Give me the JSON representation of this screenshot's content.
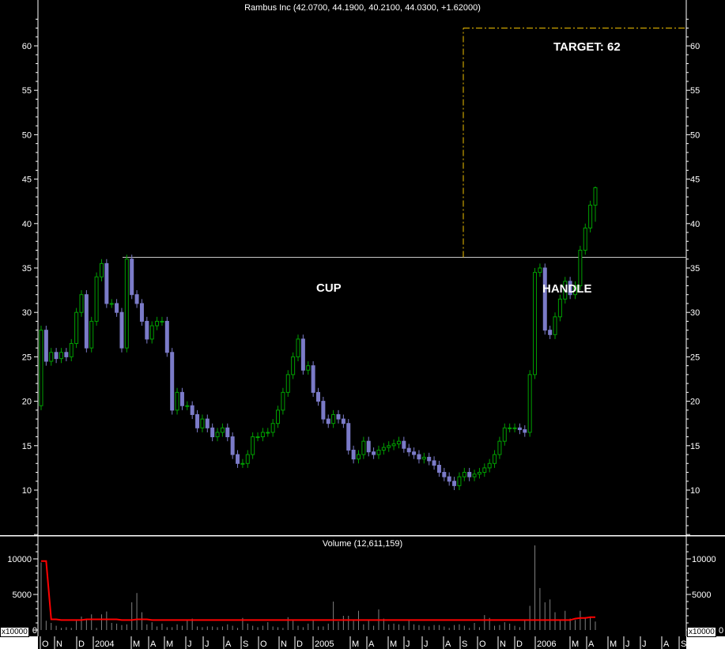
{
  "chart_data": [
    {
      "type": "candlestick",
      "title": "Rambus Inc (42.0700, 44.1900, 40.2100, 44.0300, +1.62000)",
      "last_bar": {
        "open": 42.07,
        "high": 44.19,
        "low": 40.21,
        "close": 44.03,
        "change": 1.62
      },
      "first_open": 19.5,
      "close": [
        28,
        24.5,
        25.5,
        24.8,
        25.5,
        25,
        26.5,
        30,
        32,
        26,
        29,
        34,
        35.5,
        31,
        31,
        30,
        26,
        36,
        32,
        31,
        29,
        27,
        28.5,
        29,
        29,
        25.5,
        19,
        21,
        19.5,
        19.5,
        18.5,
        17,
        18,
        17,
        16,
        16.5,
        17,
        16,
        14,
        13,
        13,
        14,
        16,
        16,
        16.5,
        16.5,
        17.5,
        19,
        21,
        23,
        25,
        27,
        23.5,
        24,
        21,
        20,
        18,
        17.5,
        18.5,
        18,
        17.5,
        14.5,
        13.5,
        14,
        15.5,
        14.3,
        14,
        14.5,
        14.8,
        15,
        15.2,
        15.5,
        14.7,
        14.3,
        14,
        13.5,
        13.7,
        13.3,
        12.8,
        12,
        11.5,
        11,
        10.5,
        11.5,
        12,
        11.5,
        11.8,
        12,
        12.5,
        13,
        14,
        15.5,
        17,
        17,
        17,
        16.8,
        16.5,
        23,
        34.5,
        35,
        28,
        27.5,
        29.5,
        31.5,
        33.5,
        32,
        33,
        37,
        39.5,
        42.07,
        44.03
      ],
      "y_ticks": [
        10,
        15,
        20,
        25,
        30,
        35,
        40,
        45,
        50,
        55,
        60
      ],
      "ylim": [
        4.5,
        63.5
      ],
      "x_tick_labels": [
        "O",
        "N",
        "D",
        "2004",
        "M",
        "A",
        "M",
        "J",
        "J",
        "A",
        "S",
        "O",
        "N",
        "D",
        "2005",
        "M",
        "A",
        "M",
        "J",
        "J",
        "A",
        "S",
        "O",
        "N",
        "D",
        "2006",
        "M",
        "A",
        "M",
        "J",
        "J",
        "A",
        "S"
      ],
      "up_color": "#00a000",
      "down_color": "#7b7bc8",
      "annotations": {
        "resistance_level": 36.2,
        "target_level": 62,
        "target_label": "TARGET: 62",
        "cup_label": "CUP",
        "handle_label": "HANDLE"
      }
    },
    {
      "type": "bar",
      "title": "Volume (12,611,159)",
      "unit_label": "x10000",
      "values": [
        9500,
        1300,
        1000,
        600,
        300,
        400,
        300,
        1300,
        1900,
        1400,
        2200,
        300,
        2200,
        2600,
        1000,
        900,
        700,
        800,
        3900,
        5200,
        2500,
        800,
        1100,
        500,
        900,
        400,
        400,
        800,
        600,
        1400,
        1600,
        500,
        400,
        500,
        500,
        400,
        500,
        800,
        600,
        300,
        1700,
        900,
        600,
        400,
        600,
        1100,
        500,
        400,
        300,
        1800,
        1300,
        600,
        400,
        900,
        1500,
        500,
        500,
        900,
        4000,
        1200,
        2000,
        2000,
        1300,
        2700,
        800,
        1300,
        600,
        2900,
        1600,
        800,
        900,
        800,
        600,
        1500,
        800,
        700,
        600,
        500,
        700,
        700,
        500,
        300,
        700,
        800,
        600,
        300,
        1000,
        400,
        2100,
        1700,
        600,
        700,
        1100,
        900,
        600,
        400,
        1500,
        3400,
        11900,
        5900,
        3900,
        4300,
        2500,
        1500,
        2700,
        1600,
        1400,
        2700,
        1800,
        1900,
        1200
      ],
      "y_ticks": [
        0,
        5000,
        10000
      ],
      "ylim": [
        0,
        13000
      ],
      "bar_color": "#808080",
      "average_color": "#ff0000"
    }
  ]
}
